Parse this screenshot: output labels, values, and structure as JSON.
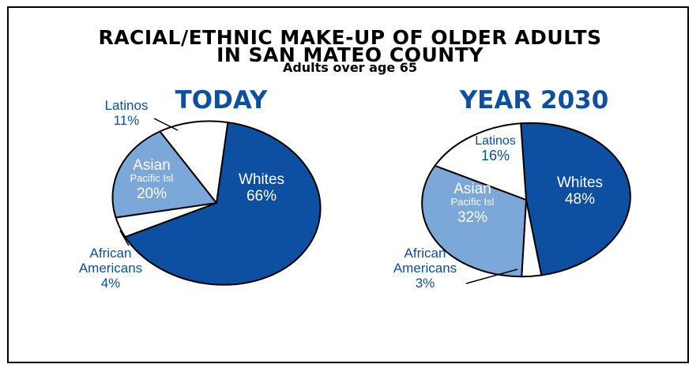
{
  "title_line1": "RACIAL/ETHNIC MAKE-UP OF OLDER ADULTS",
  "title_line2": "IN SAN MATEO COUNTY",
  "subtitle": "Adults over age 65",
  "colors": {
    "whites": "#0d4fa0",
    "asian": "#7ba7d9",
    "african": "#ffffff",
    "latinos": "#ffffff",
    "text_blue": "#0d4fa0",
    "outline": "#000000"
  },
  "chart_data": [
    {
      "type": "pie",
      "title": "TODAY",
      "slices": [
        {
          "name": "Whites",
          "value": 66,
          "label_line1": "Whites",
          "label_line2": "",
          "percent_text": "66%"
        },
        {
          "name": "African Americans",
          "value": 4,
          "label_line1": "African",
          "label_line2": "Americans",
          "percent_text": "4%"
        },
        {
          "name": "Asian Pacific Isl",
          "value": 20,
          "label_line1": "Asian",
          "label_line2": "Pacific Isl",
          "percent_text": "20%"
        },
        {
          "name": "Latinos",
          "value": 11,
          "label_line1": "Latinos",
          "label_line2": "",
          "percent_text": "11%"
        }
      ]
    },
    {
      "type": "pie",
      "title": "YEAR 2030",
      "slices": [
        {
          "name": "Whites",
          "value": 48,
          "label_line1": "Whites",
          "label_line2": "",
          "percent_text": "48%"
        },
        {
          "name": "African Americans",
          "value": 3,
          "label_line1": "African",
          "label_line2": "Americans",
          "percent_text": "3%"
        },
        {
          "name": "Asian Pacific Isl",
          "value": 32,
          "label_line1": "Asian",
          "label_line2": "Pacific Isl",
          "percent_text": "32%"
        },
        {
          "name": "Latinos",
          "value": 16,
          "label_line1": "Latinos",
          "label_line2": "",
          "percent_text": "16%"
        }
      ]
    }
  ]
}
